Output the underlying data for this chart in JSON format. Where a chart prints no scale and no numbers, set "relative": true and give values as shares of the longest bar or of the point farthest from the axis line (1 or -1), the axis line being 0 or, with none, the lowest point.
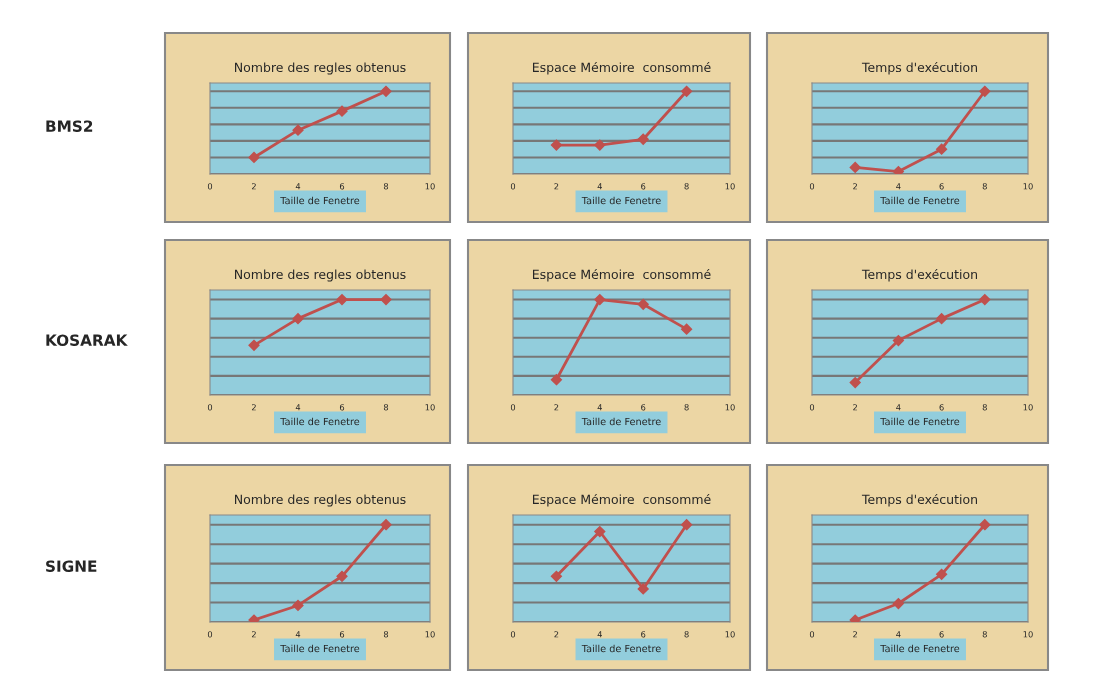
{
  "chart_data": [
    {
      "type": "line",
      "title": "Nombre des regles obtenus",
      "xlabel": "Taille de Fenetre",
      "annotations": [
        "BMS2"
      ],
      "x": [
        2,
        4,
        6,
        8
      ],
      "series": [
        {
          "color": "#c0504d",
          "values": [
            0.2,
            0.53,
            0.76,
            1
          ]
        }
      ],
      "relative": true,
      "xlim": [
        0,
        10
      ],
      "xticks": [
        0,
        2,
        4,
        6,
        8,
        10
      ],
      "grid": "y",
      "marker": "diamond",
      "line_style": "solid"
    },
    {
      "type": "line",
      "title": "Espace Mémoire  consommé",
      "xlabel": "Taille de Fenetre",
      "x": [
        2,
        4,
        6,
        8
      ],
      "series": [
        {
          "color": "#c0504d",
          "values": [
            0.35,
            0.35,
            0.42,
            1
          ]
        }
      ],
      "relative": true,
      "xlim": [
        0,
        10
      ],
      "xticks": [
        0,
        2,
        4,
        6,
        8,
        10
      ],
      "grid": "y",
      "marker": "diamond",
      "line_style": "solid"
    },
    {
      "type": "line",
      "title": "Temps d'exécution",
      "xlabel": "Taille de Fenetre",
      "x": [
        2,
        4,
        6,
        8
      ],
      "series": [
        {
          "color": "#c0504d",
          "values": [
            0.08,
            0.03,
            0.3,
            1
          ]
        }
      ],
      "relative": true,
      "xlim": [
        0,
        10
      ],
      "xticks": [
        0,
        2,
        4,
        6,
        8,
        10
      ],
      "grid": "y",
      "marker": "diamond",
      "line_style": "solid"
    },
    {
      "type": "line",
      "title": "Nombre des regles obtenus",
      "xlabel": "Taille de Fenetre",
      "annotations": [
        "KOSARAK"
      ],
      "x": [
        2,
        4,
        6,
        8
      ],
      "series": [
        {
          "color": "#c0504d",
          "values": [
            0.52,
            0.8,
            1,
            1
          ]
        }
      ],
      "relative": true,
      "xlim": [
        0,
        10
      ],
      "xticks": [
        0,
        2,
        4,
        6,
        8,
        10
      ],
      "grid": "y",
      "marker": "diamond",
      "line_style": "solid"
    },
    {
      "type": "line",
      "title": "Espace Mémoire  consommé",
      "xlabel": "Taille de Fenetre",
      "x": [
        2,
        4,
        6,
        8
      ],
      "series": [
        {
          "color": "#c0504d",
          "values": [
            0.16,
            1,
            0.95,
            0.69
          ]
        }
      ],
      "relative": true,
      "xlim": [
        0,
        10
      ],
      "xticks": [
        0,
        2,
        4,
        6,
        8,
        10
      ],
      "grid": "y",
      "marker": "diamond",
      "line_style": "solid"
    },
    {
      "type": "line",
      "title": "Temps d'exécution",
      "xlabel": "Taille de Fenetre",
      "x": [
        2,
        4,
        6,
        8
      ],
      "series": [
        {
          "color": "#c0504d",
          "values": [
            0.13,
            0.57,
            0.8,
            1
          ]
        }
      ],
      "relative": true,
      "xlim": [
        0,
        10
      ],
      "xticks": [
        0,
        2,
        4,
        6,
        8,
        10
      ],
      "grid": "y",
      "marker": "diamond",
      "line_style": "solid"
    },
    {
      "type": "line",
      "title": "Nombre des regles obtenus",
      "xlabel": "Taille de Fenetre",
      "annotations": [
        "SIGNE"
      ],
      "x": [
        2,
        4,
        6,
        8
      ],
      "series": [
        {
          "color": "#c0504d",
          "values": [
            0.02,
            0.17,
            0.47,
            1
          ]
        }
      ],
      "relative": true,
      "xlim": [
        0,
        10
      ],
      "xticks": [
        0,
        2,
        4,
        6,
        8,
        10
      ],
      "grid": "y",
      "marker": "diamond",
      "line_style": "solid"
    },
    {
      "type": "line",
      "title": "Espace Mémoire  consommé",
      "xlabel": "Taille de Fenetre",
      "x": [
        2,
        4,
        6,
        8
      ],
      "series": [
        {
          "color": "#c0504d",
          "values": [
            0.47,
            0.93,
            0.34,
            1
          ]
        }
      ],
      "relative": true,
      "xlim": [
        0,
        10
      ],
      "xticks": [
        0,
        2,
        4,
        6,
        8,
        10
      ],
      "grid": "y",
      "marker": "diamond",
      "line_style": "solid"
    },
    {
      "type": "line",
      "title": "Temps d'exécution",
      "xlabel": "Taille de Fenetre",
      "x": [
        2,
        4,
        6,
        8
      ],
      "series": [
        {
          "color": "#c0504d",
          "values": [
            0.02,
            0.19,
            0.49,
            1
          ]
        }
      ],
      "relative": true,
      "xlim": [
        0,
        10
      ],
      "xticks": [
        0,
        2,
        4,
        6,
        8,
        10
      ],
      "grid": "y",
      "marker": "diamond",
      "line_style": "solid"
    }
  ]
}
